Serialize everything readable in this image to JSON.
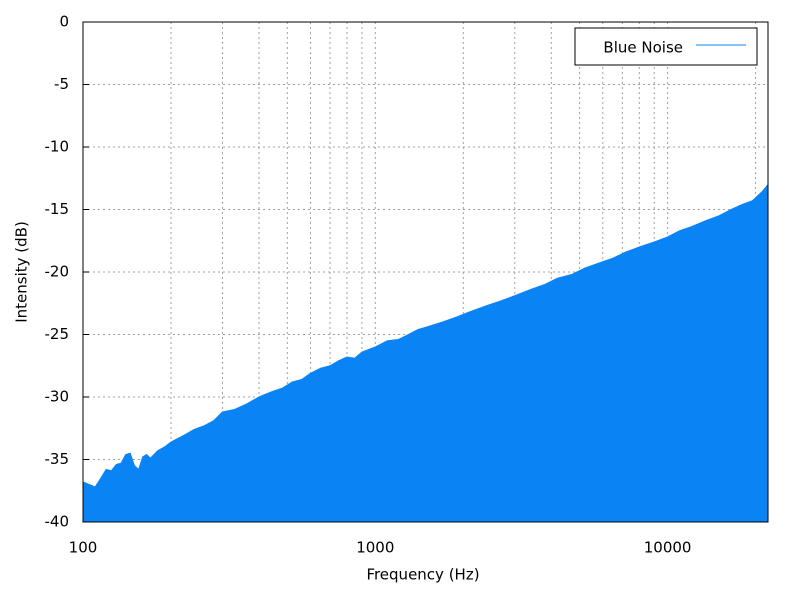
{
  "chart_data": {
    "type": "area",
    "xlabel": "Frequency (Hz)",
    "ylabel": "Intensity (dB)",
    "xscale": "log",
    "xlim": [
      100,
      22050
    ],
    "xticks": [
      100,
      1000,
      10000
    ],
    "xminorticks": [
      200,
      300,
      400,
      500,
      600,
      700,
      800,
      900,
      2000,
      3000,
      4000,
      5000,
      6000,
      7000,
      8000,
      9000,
      20000
    ],
    "ylim": [
      -40,
      0
    ],
    "yticks": [
      0,
      -5,
      -10,
      -15,
      -20,
      -25,
      -30,
      -35,
      -40
    ],
    "grid": true,
    "legend": "top-right",
    "x": [
      100,
      105,
      110,
      115,
      120,
      125,
      130,
      135,
      140,
      145,
      150,
      155,
      160,
      165,
      170,
      180,
      190,
      200,
      220,
      240,
      260,
      280,
      300,
      330,
      360,
      400,
      440,
      480,
      520,
      560,
      600,
      650,
      700,
      750,
      800,
      850,
      900,
      1000,
      1100,
      1200,
      1300,
      1400,
      1500,
      1700,
      1900,
      2100,
      2400,
      2700,
      3000,
      3400,
      3800,
      4200,
      4700,
      5200,
      5800,
      6500,
      7200,
      8000,
      9000,
      10000,
      11000,
      12000,
      13500,
      15000,
      16500,
      18000,
      19500,
      21000,
      22050
    ],
    "series": [
      {
        "name": "Blue Noise",
        "color": "#0a84f5",
        "values": [
          -36.8,
          -37,
          -37.2,
          -36.5,
          -35.8,
          -35.9,
          -35.4,
          -35.3,
          -34.6,
          -34.5,
          -35.5,
          -35.8,
          -34.8,
          -34.6,
          -34.9,
          -34.3,
          -34.0,
          -33.6,
          -33.1,
          -32.6,
          -32.3,
          -31.9,
          -31.2,
          -31.0,
          -30.6,
          -30.0,
          -29.6,
          -29.3,
          -28.8,
          -28.6,
          -28.1,
          -27.7,
          -27.5,
          -27.1,
          -26.8,
          -26.9,
          -26.4,
          -26.0,
          -25.5,
          -25.4,
          -25.0,
          -24.6,
          -24.4,
          -24.0,
          -23.6,
          -23.2,
          -22.7,
          -22.3,
          -21.9,
          -21.4,
          -21.0,
          -20.5,
          -20.2,
          -19.7,
          -19.3,
          -18.9,
          -18.4,
          -18.0,
          -17.6,
          -17.2,
          -16.7,
          -16.4,
          -15.9,
          -15.5,
          -15.0,
          -14.6,
          -14.3,
          -13.6,
          -13.0
        ]
      }
    ]
  }
}
